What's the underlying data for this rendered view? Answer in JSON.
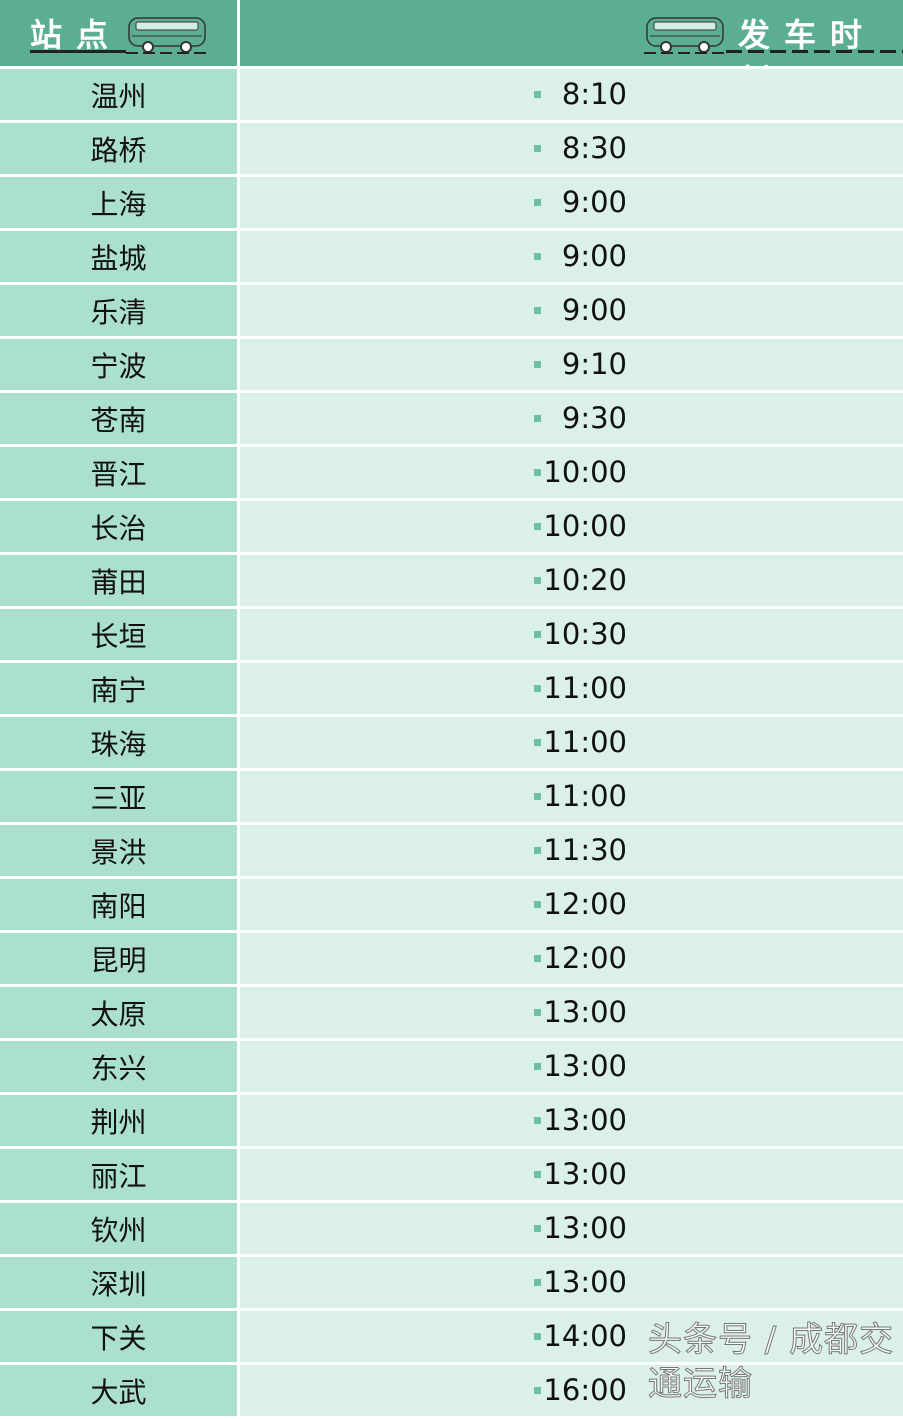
{
  "header": {
    "station_label": "站点",
    "departure_label": "发车时刻",
    "icon": "bus-icon"
  },
  "colors": {
    "header": "#5bae93",
    "station_col": "#abe0d0",
    "time_col": "#daf0e8",
    "bullet": "#6cc0a4"
  },
  "rows": [
    {
      "station": "温州",
      "time": "8:10"
    },
    {
      "station": "路桥",
      "time": "8:30"
    },
    {
      "station": "上海",
      "time": "9:00"
    },
    {
      "station": "盐城",
      "time": "9:00"
    },
    {
      "station": "乐清",
      "time": "9:00"
    },
    {
      "station": "宁波",
      "time": "9:10"
    },
    {
      "station": "苍南",
      "time": "9:30"
    },
    {
      "station": "晋江",
      "time": "10:00"
    },
    {
      "station": "长治",
      "time": "10:00"
    },
    {
      "station": "莆田",
      "time": "10:20"
    },
    {
      "station": "长垣",
      "time": "10:30"
    },
    {
      "station": "南宁",
      "time": "11:00"
    },
    {
      "station": "珠海",
      "time": "11:00"
    },
    {
      "station": "三亚",
      "time": "11:00"
    },
    {
      "station": "景洪",
      "time": "11:30"
    },
    {
      "station": "南阳",
      "time": "12:00"
    },
    {
      "station": "昆明",
      "time": "12:00"
    },
    {
      "station": "太原",
      "time": "13:00"
    },
    {
      "station": "东兴",
      "time": "13:00"
    },
    {
      "station": "荆州",
      "time": "13:00"
    },
    {
      "station": "丽江",
      "time": "13:00"
    },
    {
      "station": "钦州",
      "time": "13:00"
    },
    {
      "station": "深圳",
      "time": "13:00"
    },
    {
      "station": "下关",
      "time": "14:00"
    },
    {
      "station": "大武",
      "time": "16:00"
    }
  ],
  "watermark": "头条号 / 成都交通运输"
}
